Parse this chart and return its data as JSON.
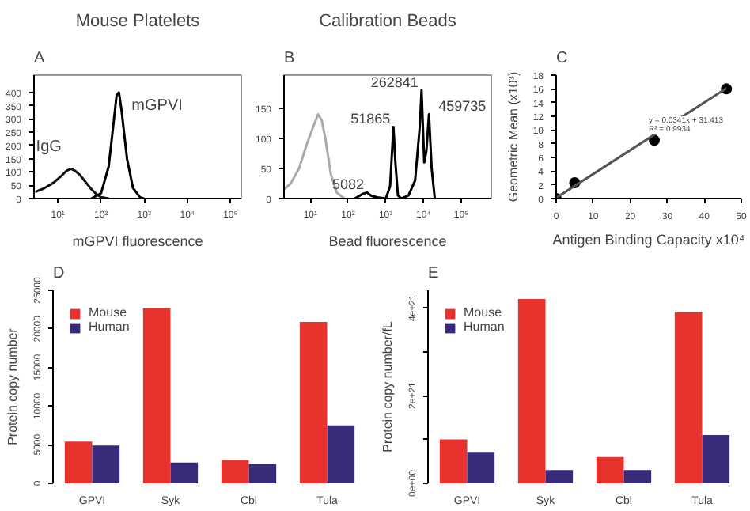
{
  "chart_data": [
    {
      "type": "line",
      "title": "Mouse Platelets",
      "xlabel": "mGPVI fluorescence",
      "annotations": [
        "A"
      ],
      "log": "x",
      "xlim": [
        2.8,
        178000
      ],
      "ylim": [
        0,
        465
      ],
      "xticks": [
        {
          "value": 10,
          "label": "10¹"
        },
        {
          "value": 100,
          "label": "10²"
        },
        {
          "value": 1000,
          "label": "10³"
        },
        {
          "value": 10000,
          "label": "10⁴"
        },
        {
          "value": 100000,
          "label": "10⁵"
        }
      ],
      "yticks": [
        0,
        50,
        100,
        150,
        200,
        250,
        300,
        350,
        400
      ],
      "series": [
        {
          "name": "IgG",
          "color": "#111111",
          "x": [
            3,
            5,
            8,
            12,
            16,
            20,
            25,
            32,
            45,
            60,
            80,
            100,
            150
          ],
          "values": [
            25,
            40,
            60,
            85,
            105,
            112,
            105,
            90,
            60,
            35,
            15,
            5,
            0
          ]
        },
        {
          "name": "mGPVI",
          "color": "#000000",
          "x": [
            60,
            100,
            150,
            200,
            230,
            260,
            300,
            400,
            550,
            800,
            1000
          ],
          "values": [
            0,
            20,
            120,
            300,
            390,
            400,
            330,
            150,
            40,
            5,
            0
          ]
        }
      ]
    },
    {
      "type": "line",
      "title": "Calibration Beads",
      "xlabel": "Bead fluorescence",
      "annotations": [
        "B",
        {
          "text": "262841",
          "x": 8900,
          "y": 180
        },
        {
          "text": "51865",
          "x": 1600,
          "y": 119
        },
        {
          "text": "5082",
          "x": 320,
          "y": 10
        },
        {
          "text": "459735",
          "x": 14000,
          "y": 140
        }
      ],
      "log": "x",
      "xlim": [
        2,
        630000
      ],
      "ylim": [
        0,
        205
      ],
      "xticks": [
        {
          "value": 10,
          "label": "10¹"
        },
        {
          "value": 100,
          "label": "10²"
        },
        {
          "value": 1000,
          "label": "10³"
        },
        {
          "value": 10000,
          "label": "10⁴"
        },
        {
          "value": 100000,
          "label": "10⁵"
        }
      ],
      "yticks": [
        0,
        50,
        100,
        150
      ],
      "series": [
        {
          "color": "#aaaaaa",
          "x": [
            2,
            3,
            5,
            8,
            12,
            16,
            20,
            25,
            35,
            50,
            80
          ],
          "values": [
            15,
            25,
            50,
            90,
            120,
            140,
            130,
            100,
            40,
            10,
            0
          ]
        },
        {
          "color": "#000000",
          "x": [
            150,
            250,
            320,
            400,
            600,
            1000,
            1300,
            1600,
            1800,
            2100,
            2600,
            4000,
            6000,
            8000,
            8900,
            10500,
            12000,
            14000,
            16500,
            20000
          ],
          "values": [
            0,
            8,
            10,
            5,
            2,
            0,
            20,
            119,
            60,
            5,
            0,
            5,
            30,
            120,
            180,
            60,
            80,
            140,
            50,
            0
          ]
        }
      ]
    },
    {
      "type": "scatter",
      "xlabel": "Antigen Binding Capacity x10⁴",
      "ylabel": "Geometric Mean (x10³)",
      "annotations": [
        "C",
        "y = 0.0341x + 31.413",
        "R² = 0.9934"
      ],
      "xlim": [
        0,
        50
      ],
      "ylim": [
        0,
        18
      ],
      "xticks": [
        0,
        10,
        20,
        30,
        40,
        50
      ],
      "yticks": [
        0,
        2,
        4,
        6,
        8,
        10,
        12,
        14,
        16,
        18
      ],
      "series": [
        {
          "color": "#000000",
          "marker": "circle",
          "x": [
            0,
            5,
            26.5,
            46
          ],
          "values": [
            0,
            2.3,
            8.5,
            16
          ]
        },
        {
          "type": "line",
          "color": "#555555",
          "x": [
            0,
            46
          ],
          "values": [
            0.1,
            16.1
          ]
        }
      ]
    },
    {
      "type": "bar",
      "ylabel": "Protein copy number",
      "annotations": [
        "D"
      ],
      "categories": [
        "GPVI",
        "Syk",
        "Cbl",
        "Tula"
      ],
      "ylim": [
        0,
        25000
      ],
      "yticks": [
        0,
        5000,
        10000,
        15000,
        20000,
        25000
      ],
      "legend": "top left",
      "series": [
        {
          "name": "Mouse",
          "color": "#e8322e",
          "values": [
            5400,
            22700,
            3000,
            20900
          ]
        },
        {
          "name": "Human",
          "color": "#3a2a7a",
          "values": [
            4900,
            2700,
            2500,
            7500
          ]
        }
      ]
    },
    {
      "type": "bar",
      "ylabel": "Protein copy number/fL",
      "annotations": [
        "E"
      ],
      "categories": [
        "GPVI",
        "Syk",
        "Cbl",
        "Tula"
      ],
      "ylim": [
        0,
        4.4e+21
      ],
      "yticks": [
        {
          "value": 0,
          "label": "0e+00"
        },
        {
          "value": 1e+21,
          "label": null
        },
        {
          "value": 2e+21,
          "label": "2e+21"
        },
        {
          "value": 3e+21,
          "label": null
        },
        {
          "value": 4e+21,
          "label": "4e+21"
        }
      ],
      "legend": "top left",
      "series": [
        {
          "name": "Mouse",
          "color": "#e8322e",
          "values": [
            1e+21,
            4.2e+21,
            6e+20,
            3.9e+21
          ]
        },
        {
          "name": "Human",
          "color": "#3a2a7a",
          "values": [
            7e+20,
            3e+20,
            3e+20,
            1.1e+21
          ]
        }
      ]
    }
  ]
}
